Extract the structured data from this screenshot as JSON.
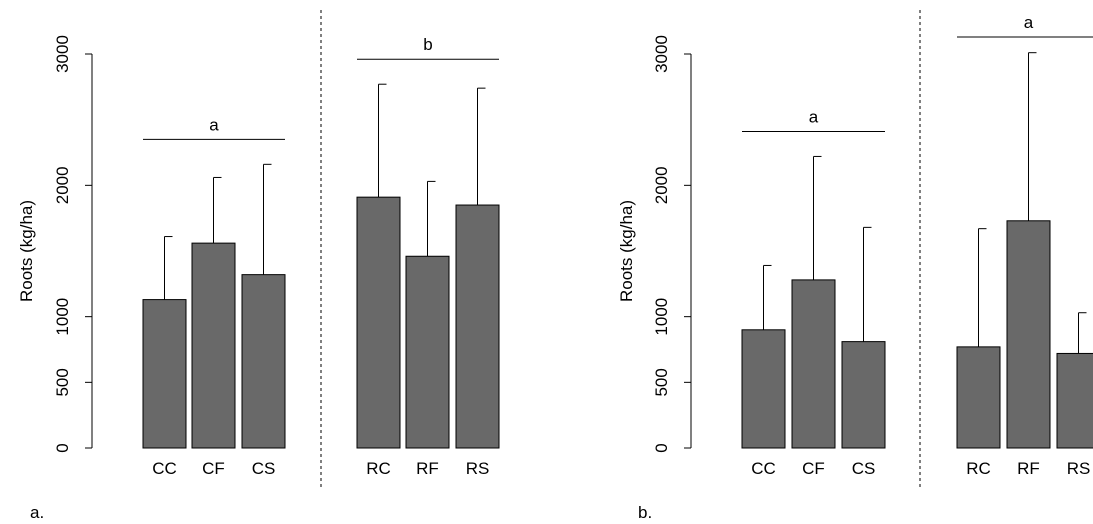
{
  "bar_color": "#696969",
  "chart_data": [
    {
      "type": "bar",
      "panel_label": "a.",
      "ylabel": "Roots (kg/ha)",
      "ylim": [
        0,
        3000
      ],
      "yticks": [
        0,
        500,
        1000,
        2000,
        3000
      ],
      "grid": false,
      "groups": [
        {
          "categories": [
            "CC",
            "CF",
            "CS"
          ],
          "values": [
            1130,
            1560,
            1320
          ],
          "error_upper": [
            1610,
            2060,
            2160
          ],
          "letter": "a"
        },
        {
          "categories": [
            "RC",
            "RF",
            "RS"
          ],
          "values": [
            1910,
            1460,
            1850
          ],
          "error_upper": [
            2770,
            2030,
            2740
          ],
          "letter": "b"
        }
      ]
    },
    {
      "type": "bar",
      "panel_label": "b.",
      "ylabel": "Roots (kg/ha)",
      "ylim": [
        0,
        3000
      ],
      "yticks": [
        0,
        500,
        1000,
        2000,
        3000
      ],
      "grid": false,
      "groups": [
        {
          "categories": [
            "CC",
            "CF",
            "CS"
          ],
          "values": [
            900,
            1280,
            810
          ],
          "error_upper": [
            1390,
            2220,
            1680
          ],
          "letter": "a"
        },
        {
          "categories": [
            "RC",
            "RF",
            "RS"
          ],
          "values": [
            770,
            1730,
            720
          ],
          "error_upper": [
            1670,
            3010,
            1030
          ],
          "letter": "a"
        }
      ]
    }
  ]
}
